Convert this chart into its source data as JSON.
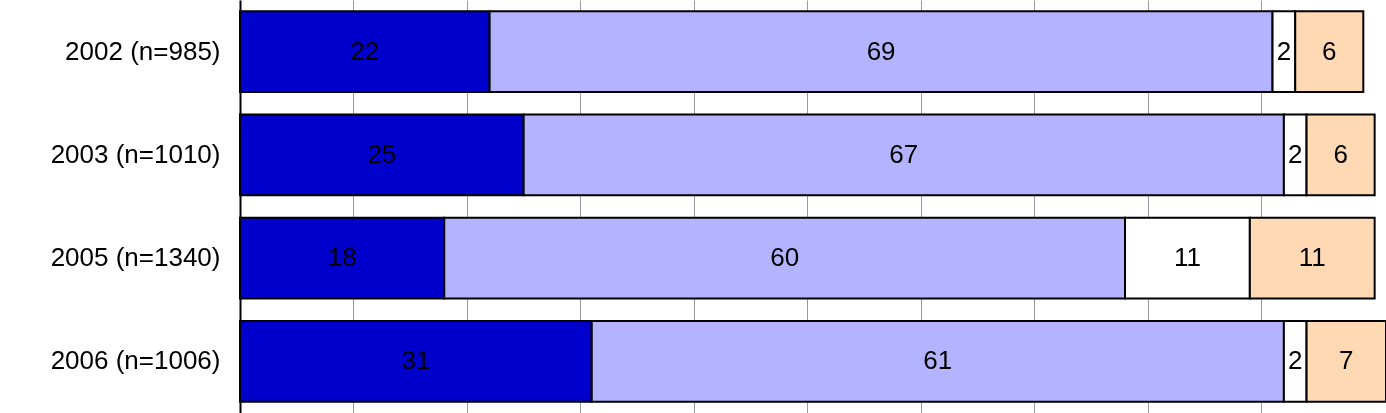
{
  "chart_data": {
    "type": "bar",
    "orientation": "horizontal",
    "stacked": true,
    "data_labels": true,
    "grid": "x",
    "tick_labels": "y",
    "categories": [
      "2002 (n=985)",
      "2003 (n=1010)",
      "2005 (n=1340)",
      "2006 (n=1006)"
    ],
    "xlim": [
      0,
      101
    ],
    "xticks": [
      {
        "value": 0,
        "label": null
      },
      {
        "value": 10,
        "label": null
      },
      {
        "value": 20,
        "label": null
      },
      {
        "value": 30,
        "label": null
      },
      {
        "value": 40,
        "label": null
      },
      {
        "value": 50,
        "label": null
      },
      {
        "value": 60,
        "label": null
      },
      {
        "value": 70,
        "label": null
      },
      {
        "value": 80,
        "label": null
      },
      {
        "value": 90,
        "label": null
      }
    ],
    "series": [
      {
        "color": "#0000cc",
        "values": [
          22,
          25,
          18,
          31
        ]
      },
      {
        "color": "#b3b3ff",
        "values": [
          69,
          67,
          60,
          61
        ]
      },
      {
        "color": "#ffffff",
        "values": [
          2,
          2,
          11,
          2
        ]
      },
      {
        "color": "#ffd9b3",
        "values": [
          6,
          6,
          11,
          7
        ]
      }
    ]
  }
}
